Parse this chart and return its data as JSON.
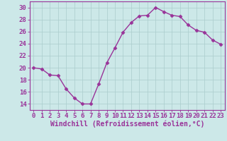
{
  "x": [
    0,
    1,
    2,
    3,
    4,
    5,
    6,
    7,
    8,
    9,
    10,
    11,
    12,
    13,
    14,
    15,
    16,
    17,
    18,
    19,
    20,
    21,
    22,
    23
  ],
  "y": [
    20.0,
    19.8,
    18.8,
    18.7,
    16.5,
    15.0,
    14.0,
    14.0,
    17.3,
    20.8,
    23.3,
    25.9,
    27.5,
    28.6,
    28.7,
    30.0,
    29.3,
    28.7,
    28.5,
    27.1,
    26.2,
    25.9,
    24.6,
    23.9
  ],
  "line_color": "#993399",
  "marker": "D",
  "marker_size": 2.5,
  "bg_color": "#cce8e8",
  "grid_color": "#aacccc",
  "xlabel": "Windchill (Refroidissement éolien,°C)",
  "ylim": [
    13,
    31
  ],
  "yticks": [
    14,
    16,
    18,
    20,
    22,
    24,
    26,
    28,
    30
  ],
  "xlim": [
    -0.5,
    23.5
  ],
  "xticks": [
    0,
    1,
    2,
    3,
    4,
    5,
    6,
    7,
    8,
    9,
    10,
    11,
    12,
    13,
    14,
    15,
    16,
    17,
    18,
    19,
    20,
    21,
    22,
    23
  ],
  "tick_label_fontsize": 6.5,
  "xlabel_fontsize": 7.0,
  "linewidth": 1.0
}
